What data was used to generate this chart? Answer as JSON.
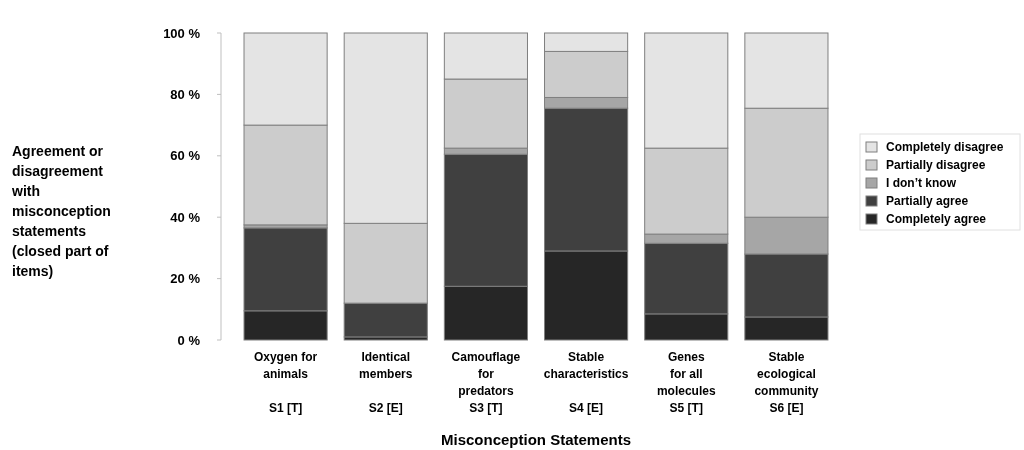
{
  "chart_data": {
    "type": "bar",
    "stacked": true,
    "xlabel": "Misconception  Statements",
    "ylabel": "Agreement or disagreement with misconception statements (closed part of items)",
    "categories": [
      "Oxygen for\nanimals\n\nS1 [T]",
      "Identical\nmembers\n\nS2 [E]",
      "Camouflage\nfor\npredators\nS3 [T]",
      "Stable\ncharacteristics\n\nS4 [E]",
      "Genes\nfor all\nmolecules\nS5 [T]",
      "Stable\necological\ncommunity\nS6 [E]"
    ],
    "series": [
      {
        "name": "Completely agree",
        "color": "#262626",
        "values": [
          9.5,
          1,
          17.5,
          29,
          8.5,
          7.5
        ]
      },
      {
        "name": "Partially agree",
        "color": "#404040",
        "values": [
          27,
          11,
          43,
          46.5,
          23,
          20.5
        ]
      },
      {
        "name": "I don’t know",
        "color": "#a6a6a6",
        "values": [
          1,
          0,
          2,
          3.5,
          3,
          12
        ]
      },
      {
        "name": "Partially disagree",
        "color": "#cccccc",
        "values": [
          32.5,
          26,
          22.5,
          15,
          28,
          35.5
        ]
      },
      {
        "name": "Completely disagree",
        "color": "#e4e4e4",
        "values": [
          30,
          62,
          15,
          6,
          37.5,
          24.5
        ]
      }
    ],
    "ylim": [
      0,
      100
    ],
    "yticks": [
      {
        "value": 0,
        "label": "0 %"
      },
      {
        "value": 20,
        "label": "20 %"
      },
      {
        "value": 40,
        "label": "40 %"
      },
      {
        "value": 60,
        "label": "60 %"
      },
      {
        "value": 80,
        "label": "80 %"
      },
      {
        "value": 100,
        "label": "100 %"
      }
    ],
    "grid": false,
    "legend": "right"
  }
}
